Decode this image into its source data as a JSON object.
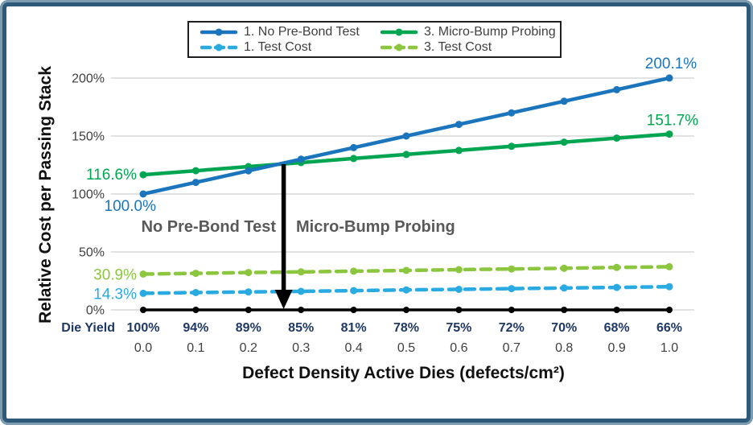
{
  "frame": {
    "background": "#ffffff",
    "border_outer_color": "#7d9cb0",
    "border_inner_color": "#2e5b79"
  },
  "legend": {
    "items": [
      {
        "label": "1. No Pre-Bond Test",
        "color": "#1b75bc",
        "dash": false
      },
      {
        "label": "3. Micro-Bump Probing",
        "color": "#00a551",
        "dash": false
      },
      {
        "label": "1. Test Cost",
        "color": "#29abe2",
        "dash": true
      },
      {
        "label": "3. Test Cost",
        "color": "#8cc63f",
        "dash": true
      }
    ]
  },
  "chart_data": {
    "type": "line",
    "title": "",
    "xlabel": "Defect Density Active Dies (defects/cm²)",
    "ylabel": "Relative Cost per Passing Stack",
    "x": [
      0.0,
      0.1,
      0.2,
      0.3,
      0.4,
      0.5,
      0.6,
      0.7,
      0.8,
      0.9,
      1.0
    ],
    "x_tick_labels": [
      "0.0",
      "0.1",
      "0.2",
      "0.3",
      "0.4",
      "0.5",
      "0.6",
      "0.7",
      "0.8",
      "0.9",
      "1.0"
    ],
    "y_tick_values": [
      0,
      50,
      100,
      150,
      200
    ],
    "y_tick_labels": [
      "0%",
      "50%",
      "100%",
      "150%",
      "200%"
    ],
    "ylim": [
      0,
      215
    ],
    "grid": true,
    "legend_position": "top-center",
    "die_yield": {
      "label": "Die Yield",
      "values": [
        "100%",
        "94%",
        "89%",
        "85%",
        "81%",
        "78%",
        "75%",
        "72%",
        "70%",
        "68%",
        "66%"
      ]
    },
    "series": [
      {
        "name": "1. No Pre-Bond Test",
        "color": "#1b75bc",
        "style": "solid",
        "values": [
          100.0,
          110.0,
          120.0,
          130.0,
          140.0,
          150.0,
          160.0,
          170.0,
          180.0,
          190.0,
          200.1
        ],
        "labels": {
          "start": "100.0%",
          "end": "200.1%"
        }
      },
      {
        "name": "3. Micro-Bump Probing",
        "color": "#00a551",
        "style": "solid",
        "values": [
          116.6,
          120.1,
          123.6,
          127.1,
          130.6,
          134.1,
          137.6,
          141.1,
          144.7,
          148.2,
          151.7
        ],
        "labels": {
          "start": "116.6%",
          "end": "151.7%"
        }
      },
      {
        "name": "1. Test Cost",
        "color": "#29abe2",
        "style": "dashed",
        "values": [
          14.3,
          14.9,
          15.5,
          16.0,
          16.6,
          17.2,
          17.7,
          18.3,
          18.9,
          19.4,
          20.0
        ],
        "labels": {
          "start": "14.3%"
        }
      },
      {
        "name": "3. Test Cost",
        "color": "#8cc63f",
        "style": "dashed",
        "values": [
          30.9,
          31.5,
          32.2,
          32.8,
          33.4,
          34.0,
          34.7,
          35.3,
          35.9,
          36.6,
          37.2
        ],
        "labels": {
          "start": "30.9%"
        }
      },
      {
        "name": "baseline",
        "color": "#000000",
        "style": "solid",
        "values": [
          0,
          0,
          0,
          0,
          0,
          0,
          0,
          0,
          0,
          0,
          0
        ],
        "labels": {}
      }
    ],
    "annotation": {
      "left": "No Pre-Bond Test",
      "right": "Micro-Bump Probing",
      "arrow_x": 0.267
    }
  }
}
